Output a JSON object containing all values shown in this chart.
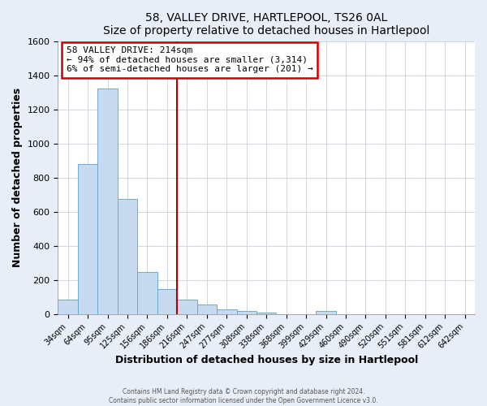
{
  "title": "58, VALLEY DRIVE, HARTLEPOOL, TS26 0AL",
  "subtitle": "Size of property relative to detached houses in Hartlepool",
  "xlabel": "Distribution of detached houses by size in Hartlepool",
  "ylabel": "Number of detached properties",
  "bar_labels": [
    "34sqm",
    "64sqm",
    "95sqm",
    "125sqm",
    "156sqm",
    "186sqm",
    "216sqm",
    "247sqm",
    "277sqm",
    "308sqm",
    "338sqm",
    "368sqm",
    "399sqm",
    "429sqm",
    "460sqm",
    "490sqm",
    "520sqm",
    "551sqm",
    "581sqm",
    "612sqm",
    "642sqm"
  ],
  "bar_values": [
    85,
    880,
    1320,
    675,
    248,
    148,
    85,
    55,
    25,
    20,
    10,
    0,
    0,
    20,
    0,
    0,
    0,
    0,
    0,
    0,
    0
  ],
  "bar_color": "#c8daf0",
  "bar_edgecolor": "#6aaad4",
  "vline_color": "#aa0000",
  "annotation_text": "58 VALLEY DRIVE: 214sqm\n← 94% of detached houses are smaller (3,314)\n6% of semi-detached houses are larger (201) →",
  "annotation_box_color": "#cc0000",
  "ylim": [
    0,
    1600
  ],
  "yticks": [
    0,
    200,
    400,
    600,
    800,
    1000,
    1200,
    1400,
    1600
  ],
  "footer1": "Contains HM Land Registry data © Crown copyright and database right 2024.",
  "footer2": "Contains public sector information licensed under the Open Government Licence v3.0.",
  "fig_bg_color": "#e8eef8",
  "plot_bg_color": "#ffffff",
  "grid_color": "#c8d0dc"
}
